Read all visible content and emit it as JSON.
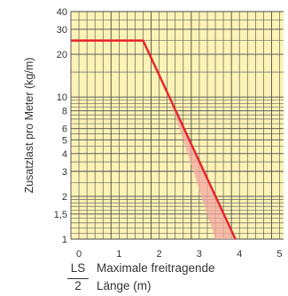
{
  "chart_data": {
    "type": "line",
    "xlabel_fraction": {
      "numerator": "LS",
      "denominator": "2"
    },
    "xlabel_lines": [
      "Maximale freitragende",
      "Länge (m)"
    ],
    "ylabel": "Zusatzlast pro Meter (kg/m)",
    "xlim": [
      0,
      5.3
    ],
    "ylim": [
      1,
      40
    ],
    "y_scale": "log",
    "x_ticks": [
      "0",
      "1",
      "2",
      "3",
      "4",
      "5"
    ],
    "y_ticks": [
      {
        "value": 1,
        "label": "1"
      },
      {
        "value": 1.5,
        "label": "1,5"
      },
      {
        "value": 2,
        "label": "2"
      },
      {
        "value": 3,
        "label": "3"
      },
      {
        "value": 4,
        "label": "4"
      },
      {
        "value": 5,
        "label": "5"
      },
      {
        "value": 6,
        "label": "6"
      },
      {
        "value": 8,
        "label": "8"
      },
      {
        "value": 10,
        "label": "10"
      },
      {
        "value": 20,
        "label": "20"
      },
      {
        "value": 30,
        "label": "30"
      },
      {
        "value": 40,
        "label": "40"
      }
    ],
    "grid": true,
    "series": [
      {
        "points": [
          [
            0,
            25
          ],
          [
            1.8,
            25
          ],
          [
            4.1,
            1
          ]
        ]
      }
    ],
    "shaded_band": [
      [
        2.45,
        10
      ],
      [
        3.6,
        1
      ],
      [
        4.1,
        1
      ]
    ],
    "colors": {
      "background": "#fdf3b6",
      "grid": "#4a4a4a",
      "line": "#e8222b",
      "band": "#f2a8a0"
    }
  }
}
